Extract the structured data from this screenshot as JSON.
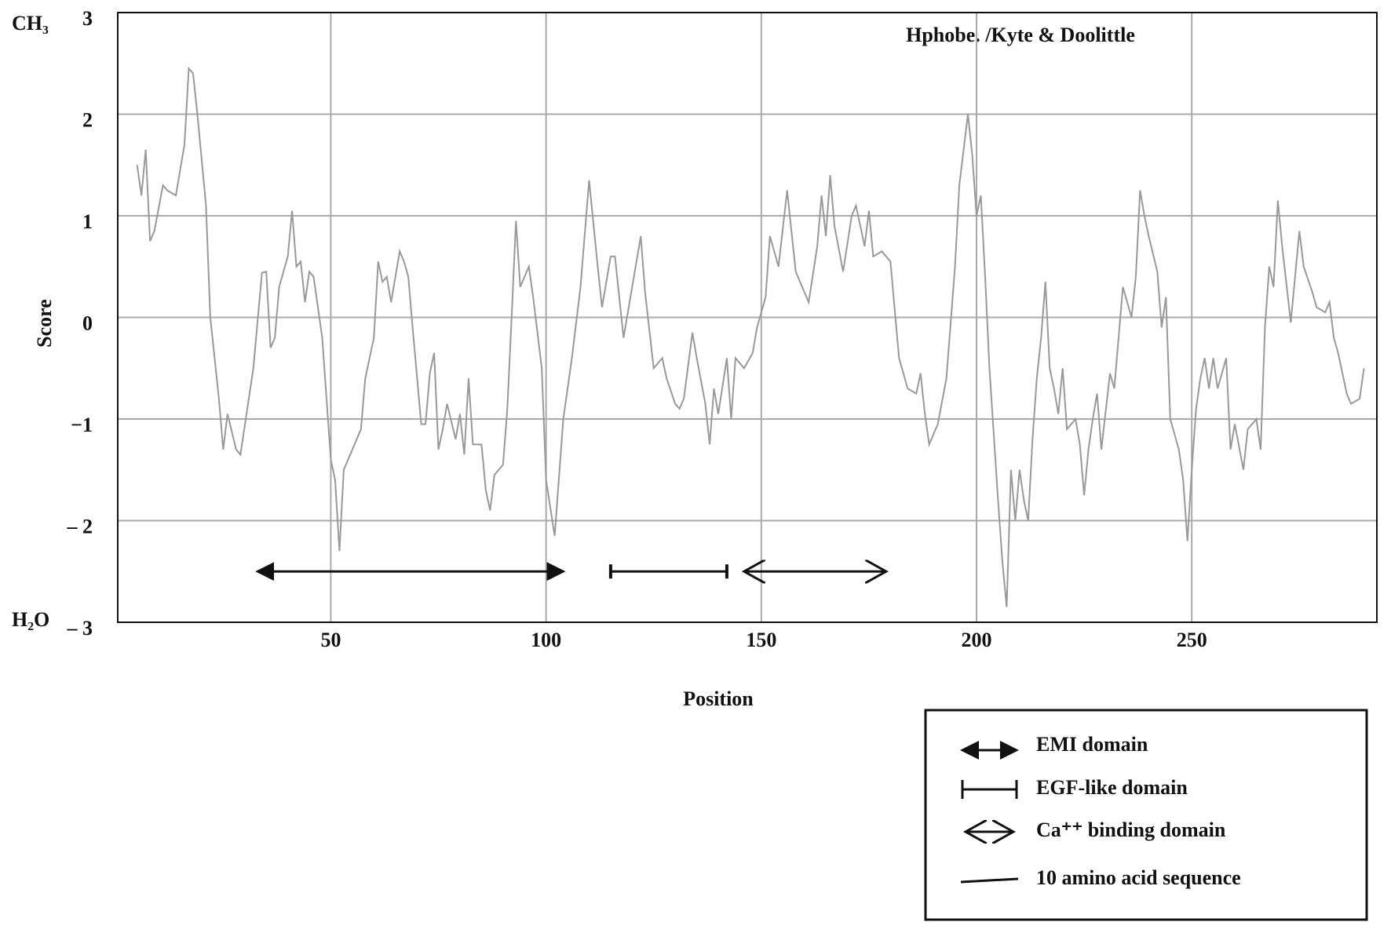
{
  "chart_data": {
    "type": "line",
    "title": "Hphobe. /Kyte & Doolittle",
    "x_label": "Position",
    "y_label": "Score",
    "y_top_label": "CH₃",
    "y_bottom_label": "H₂O",
    "xlim": [
      0.5,
      293
    ],
    "ylim": [
      -3,
      3
    ],
    "xticks": [
      50,
      100,
      150,
      200,
      250
    ],
    "yticks": [
      3,
      2,
      1,
      0,
      {
        "value": -1,
        "label": "−1"
      },
      {
        "value": -2,
        "label": "– 2"
      },
      {
        "value": -3,
        "label": "– 3"
      }
    ],
    "grid": true,
    "series": [
      {
        "color": "#999999",
        "x": [
          5,
          6,
          7,
          8,
          9,
          11,
          12,
          14,
          16,
          17,
          18,
          19,
          21,
          22,
          24,
          25,
          26,
          28,
          29,
          32,
          34,
          35,
          36,
          37,
          38,
          40,
          41,
          42,
          43,
          44,
          45,
          46,
          48,
          50,
          51,
          52,
          53,
          54,
          55,
          57,
          58,
          60,
          61,
          62,
          63,
          64,
          66,
          67,
          68,
          69,
          71,
          72,
          73,
          74,
          75,
          76,
          77,
          79,
          80,
          81,
          82,
          83,
          85,
          86,
          87,
          88,
          90,
          91,
          92,
          93,
          94,
          96,
          97,
          99,
          100,
          102,
          104,
          106,
          108,
          110,
          112,
          113,
          115,
          116,
          117,
          118,
          120,
          122,
          123,
          125,
          127,
          128,
          130,
          131,
          132,
          134,
          135,
          137,
          138,
          139,
          140,
          142,
          143,
          144,
          146,
          148,
          149,
          151,
          152,
          154,
          156,
          158,
          161,
          163,
          164,
          165,
          166,
          167,
          169,
          171,
          172,
          174,
          175,
          176,
          178,
          180,
          182,
          184,
          186,
          187,
          188,
          189,
          191,
          193,
          195,
          196,
          198,
          199,
          200,
          201,
          202,
          203,
          205,
          206,
          207,
          208,
          209,
          210,
          211,
          212,
          213,
          214,
          215,
          216,
          217,
          218,
          219,
          220,
          221,
          223,
          224,
          225,
          226,
          227,
          228,
          229,
          231,
          232,
          234,
          236,
          237,
          238,
          239,
          240,
          242,
          243,
          244,
          245,
          247,
          248,
          249,
          250,
          251,
          252,
          253,
          254,
          255,
          256,
          258,
          259,
          260,
          262,
          263,
          265,
          266,
          267,
          268,
          269,
          270,
          271,
          273,
          275,
          276,
          278,
          279,
          281,
          282,
          283,
          284,
          286,
          287,
          289,
          290
        ],
        "values": [
          1.5,
          1.2,
          1.65,
          0.75,
          0.85,
          1.3,
          1.25,
          1.2,
          1.7,
          2.45,
          2.4,
          2.0,
          1.1,
          0.0,
          -0.8,
          -1.3,
          -0.95,
          -1.3,
          -1.35,
          -0.5,
          0.44,
          0.45,
          -0.3,
          -0.2,
          0.3,
          0.6,
          1.05,
          0.5,
          0.55,
          0.15,
          0.45,
          0.4,
          -0.2,
          -1.4,
          -1.6,
          -2.3,
          -1.5,
          -1.4,
          -1.3,
          -1.1,
          -0.6,
          -0.2,
          0.55,
          0.35,
          0.4,
          0.15,
          0.65,
          0.55,
          0.4,
          -0.1,
          -1.05,
          -1.05,
          -0.55,
          -0.35,
          -1.3,
          -1.1,
          -0.85,
          -1.2,
          -0.95,
          -1.35,
          -0.6,
          -1.25,
          -1.25,
          -1.7,
          -1.9,
          -1.55,
          -1.45,
          -0.9,
          0.0,
          0.95,
          0.3,
          0.5,
          0.2,
          -0.5,
          -1.6,
          -2.15,
          -1.0,
          -0.4,
          0.3,
          1.35,
          0.5,
          0.1,
          0.6,
          0.6,
          0.2,
          -0.2,
          0.3,
          0.8,
          0.25,
          -0.5,
          -0.4,
          -0.6,
          -0.85,
          -0.9,
          -0.8,
          -0.15,
          -0.4,
          -0.85,
          -1.25,
          -0.7,
          -0.95,
          -0.4,
          -1.0,
          -0.4,
          -0.5,
          -0.35,
          -0.1,
          0.2,
          0.8,
          0.5,
          1.25,
          0.45,
          0.15,
          0.7,
          1.2,
          0.8,
          1.4,
          0.9,
          0.45,
          1.0,
          1.1,
          0.7,
          1.05,
          0.6,
          0.65,
          0.55,
          -0.4,
          -0.7,
          -0.75,
          -0.55,
          -0.95,
          -1.25,
          -1.05,
          -0.6,
          0.5,
          1.3,
          2.0,
          1.6,
          1.0,
          1.2,
          0.4,
          -0.5,
          -1.8,
          -2.4,
          -2.85,
          -1.5,
          -2.0,
          -1.5,
          -1.8,
          -2.0,
          -1.2,
          -0.6,
          -0.2,
          0.35,
          -0.5,
          -0.7,
          -0.95,
          -0.5,
          -1.1,
          -1.0,
          -1.25,
          -1.75,
          -1.3,
          -1.0,
          -0.75,
          -1.3,
          -0.55,
          -0.7,
          0.3,
          0.0,
          0.4,
          1.25,
          1.0,
          0.8,
          0.45,
          -0.1,
          0.2,
          -1.0,
          -1.3,
          -1.6,
          -2.2,
          -1.5,
          -0.9,
          -0.6,
          -0.4,
          -0.7,
          -0.4,
          -0.7,
          -0.4,
          -1.3,
          -1.05,
          -1.5,
          -1.1,
          -1.0,
          -1.3,
          -0.1,
          0.5,
          0.3,
          1.15,
          0.7,
          -0.05,
          0.85,
          0.5,
          0.25,
          0.1,
          0.05,
          0.15,
          -0.2,
          -0.35,
          -0.75,
          -0.85,
          -0.8,
          -0.5
        ]
      }
    ],
    "domains": [
      {
        "name": "EMI domain",
        "start": 33,
        "end": 104
      },
      {
        "name": "EGF-like domain",
        "start": 115,
        "end": 142
      },
      {
        "name": "Ca⁺⁺ binding domain",
        "start": 146,
        "end": 179
      }
    ],
    "legend_extra": "10 amino acid sequence"
  }
}
